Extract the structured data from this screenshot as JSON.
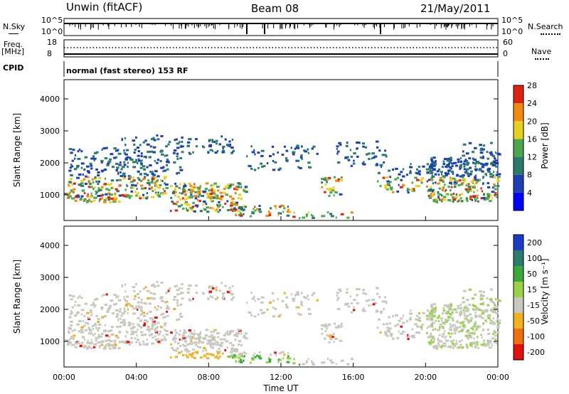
{
  "header": {
    "station": "Unwin (fitACF)",
    "beam": "Beam 08",
    "date": "21/May/2011"
  },
  "summary_panels": {
    "nsky": {
      "label": "N.Sky",
      "ticks": [
        "10^5",
        "10^0"
      ]
    },
    "nsearch": {
      "label": "N.Search",
      "ticks": [
        "10^5",
        "10^0"
      ]
    },
    "freq": {
      "label": "Freq.",
      "unit": "[MHz]",
      "ticks": [
        "18",
        "8"
      ]
    },
    "nave": {
      "label": "Nave",
      "ticks": [
        "60",
        "0"
      ]
    },
    "cpid": {
      "label": "CPID",
      "value": "normal (fast stereo) 153 RF"
    }
  },
  "chart_data": [
    {
      "type": "heatmap",
      "name": "power",
      "ylabel": "Slant Range [km]",
      "ylim": [
        200,
        4600
      ],
      "yticks": [
        1000,
        2000,
        3000,
        4000
      ],
      "colorbar": {
        "label": "Power [dB]",
        "ticks": [
          4,
          8,
          12,
          16,
          20,
          24,
          28
        ],
        "colors": [
          "#0000ff",
          "#1c3fb4",
          "#2b7a6a",
          "#4ca84c",
          "#e8d020",
          "#f08a10",
          "#e02010"
        ]
      }
    },
    {
      "type": "heatmap",
      "name": "velocity",
      "ylabel": "Slant Range [km]",
      "xlabel": "Time UT",
      "ylim": [
        200,
        4600
      ],
      "yticks": [
        1000,
        2000,
        3000,
        4000
      ],
      "xticks": [
        "00:00",
        "04:00",
        "08:00",
        "12:00",
        "16:00",
        "20:00",
        "00:00"
      ],
      "colorbar": {
        "label": "Velocity [m s⁻¹]",
        "ticks": [
          200,
          100,
          50,
          15,
          -15,
          -50,
          -100,
          -200
        ],
        "colors": [
          "#1a3cc8",
          "#2a7c6c",
          "#3aa83a",
          "#9ad24a",
          "#c8c8c0",
          "#f0b020",
          "#f07010",
          "#e01010"
        ]
      }
    }
  ]
}
